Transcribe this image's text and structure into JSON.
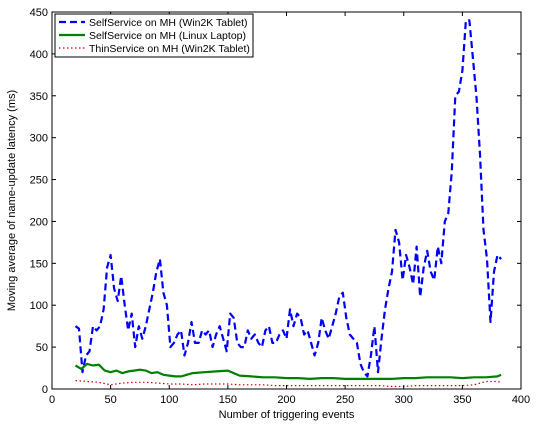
{
  "chart_data": {
    "type": "line",
    "title": "",
    "xlabel": "Number of triggering events",
    "ylabel": "Moving average of name-update latency (ms)",
    "xlim": [
      0,
      400
    ],
    "ylim": [
      0,
      450
    ],
    "xticks": [
      0,
      50,
      100,
      150,
      200,
      250,
      300,
      350,
      400
    ],
    "yticks": [
      0,
      50,
      100,
      150,
      200,
      250,
      300,
      350,
      400,
      450
    ],
    "grid": false,
    "legend_position": "top-left",
    "series": [
      {
        "name": "SelfService on MH (Win2K Tablet)",
        "color": "#0000ff",
        "style": "dashed",
        "x": [
          20,
          23,
          26,
          29,
          32,
          35,
          38,
          41,
          44,
          47,
          50,
          53,
          56,
          59,
          62,
          65,
          68,
          71,
          74,
          77,
          80,
          83,
          86,
          89,
          92,
          95,
          98,
          101,
          104,
          107,
          110,
          113,
          116,
          119,
          122,
          125,
          128,
          131,
          134,
          137,
          140,
          143,
          146,
          149,
          152,
          155,
          158,
          161,
          164,
          167,
          170,
          173,
          176,
          179,
          182,
          185,
          188,
          191,
          194,
          197,
          200,
          203,
          206,
          209,
          212,
          215,
          218,
          221,
          224,
          227,
          230,
          233,
          236,
          239,
          242,
          245,
          248,
          251,
          254,
          257,
          260,
          263,
          266,
          269,
          272,
          275,
          278,
          281,
          284,
          287,
          290,
          293,
          296,
          299,
          302,
          305,
          308,
          311,
          314,
          317,
          320,
          323,
          326,
          329,
          332,
          335,
          338,
          341,
          344,
          347,
          350,
          353,
          356,
          359,
          362,
          365,
          368,
          371,
          374,
          377,
          380,
          383
        ],
        "values": [
          75,
          72,
          20,
          40,
          45,
          75,
          70,
          75,
          95,
          145,
          160,
          120,
          105,
          135,
          100,
          70,
          90,
          50,
          75,
          60,
          75,
          95,
          115,
          140,
          155,
          115,
          100,
          50,
          55,
          65,
          70,
          40,
          55,
          80,
          55,
          55,
          70,
          65,
          70,
          50,
          65,
          75,
          60,
          45,
          90,
          85,
          55,
          50,
          50,
          70,
          60,
          65,
          55,
          50,
          70,
          75,
          55,
          55,
          65,
          70,
          60,
          95,
          75,
          90,
          85,
          65,
          70,
          55,
          40,
          55,
          85,
          70,
          60,
          75,
          90,
          110,
          115,
          85,
          65,
          60,
          55,
          30,
          20,
          15,
          40,
          75,
          20,
          60,
          95,
          120,
          140,
          190,
          175,
          130,
          160,
          145,
          125,
          170,
          110,
          145,
          165,
          140,
          130,
          170,
          150,
          200,
          210,
          260,
          350,
          355,
          380,
          440,
          440,
          395,
          350,
          280,
          190,
          155,
          80,
          140,
          160,
          155
        ],
        "legend_label": "SelfService on MH (Win2K Tablet)"
      },
      {
        "name": "SelfService on MH (Linux Laptop)",
        "color": "#008000",
        "style": "solid",
        "x": [
          20,
          25,
          30,
          35,
          40,
          45,
          50,
          55,
          60,
          65,
          70,
          75,
          80,
          85,
          90,
          95,
          100,
          105,
          110,
          120,
          130,
          140,
          150,
          155,
          160,
          170,
          180,
          190,
          200,
          210,
          220,
          230,
          240,
          250,
          260,
          270,
          280,
          290,
          300,
          310,
          320,
          330,
          340,
          350,
          360,
          370,
          380,
          383
        ],
        "values": [
          28,
          24,
          30,
          28,
          29,
          22,
          20,
          22,
          19,
          21,
          22,
          23,
          22,
          19,
          20,
          17,
          16,
          15,
          15,
          19,
          20,
          21,
          22,
          19,
          16,
          15,
          14,
          14,
          13,
          13,
          12,
          13,
          13,
          12,
          12,
          12,
          12,
          12,
          13,
          13,
          14,
          14,
          14,
          13,
          14,
          14,
          15,
          17
        ],
        "legend_label": "SelfService on MH (Linux Laptop)"
      },
      {
        "name": "ThinService on MH (Win2K Tablet)",
        "color": "#cc0000",
        "style": "dotted",
        "x": [
          20,
          30,
          40,
          50,
          60,
          70,
          80,
          90,
          100,
          110,
          120,
          130,
          140,
          150,
          160,
          170,
          180,
          190,
          200,
          210,
          220,
          230,
          240,
          250,
          260,
          270,
          280,
          290,
          300,
          310,
          320,
          330,
          340,
          350,
          360,
          370,
          380,
          383
        ],
        "values": [
          10,
          9,
          8,
          5,
          7,
          8,
          8,
          7,
          6,
          6,
          5,
          6,
          6,
          6,
          5,
          5,
          5,
          4,
          4,
          4,
          4,
          4,
          4,
          4,
          4,
          4,
          4,
          3,
          3,
          4,
          4,
          4,
          4,
          4,
          5,
          9,
          9,
          8
        ],
        "legend_label": "ThinService on MH (Win2K Tablet)"
      }
    ]
  }
}
